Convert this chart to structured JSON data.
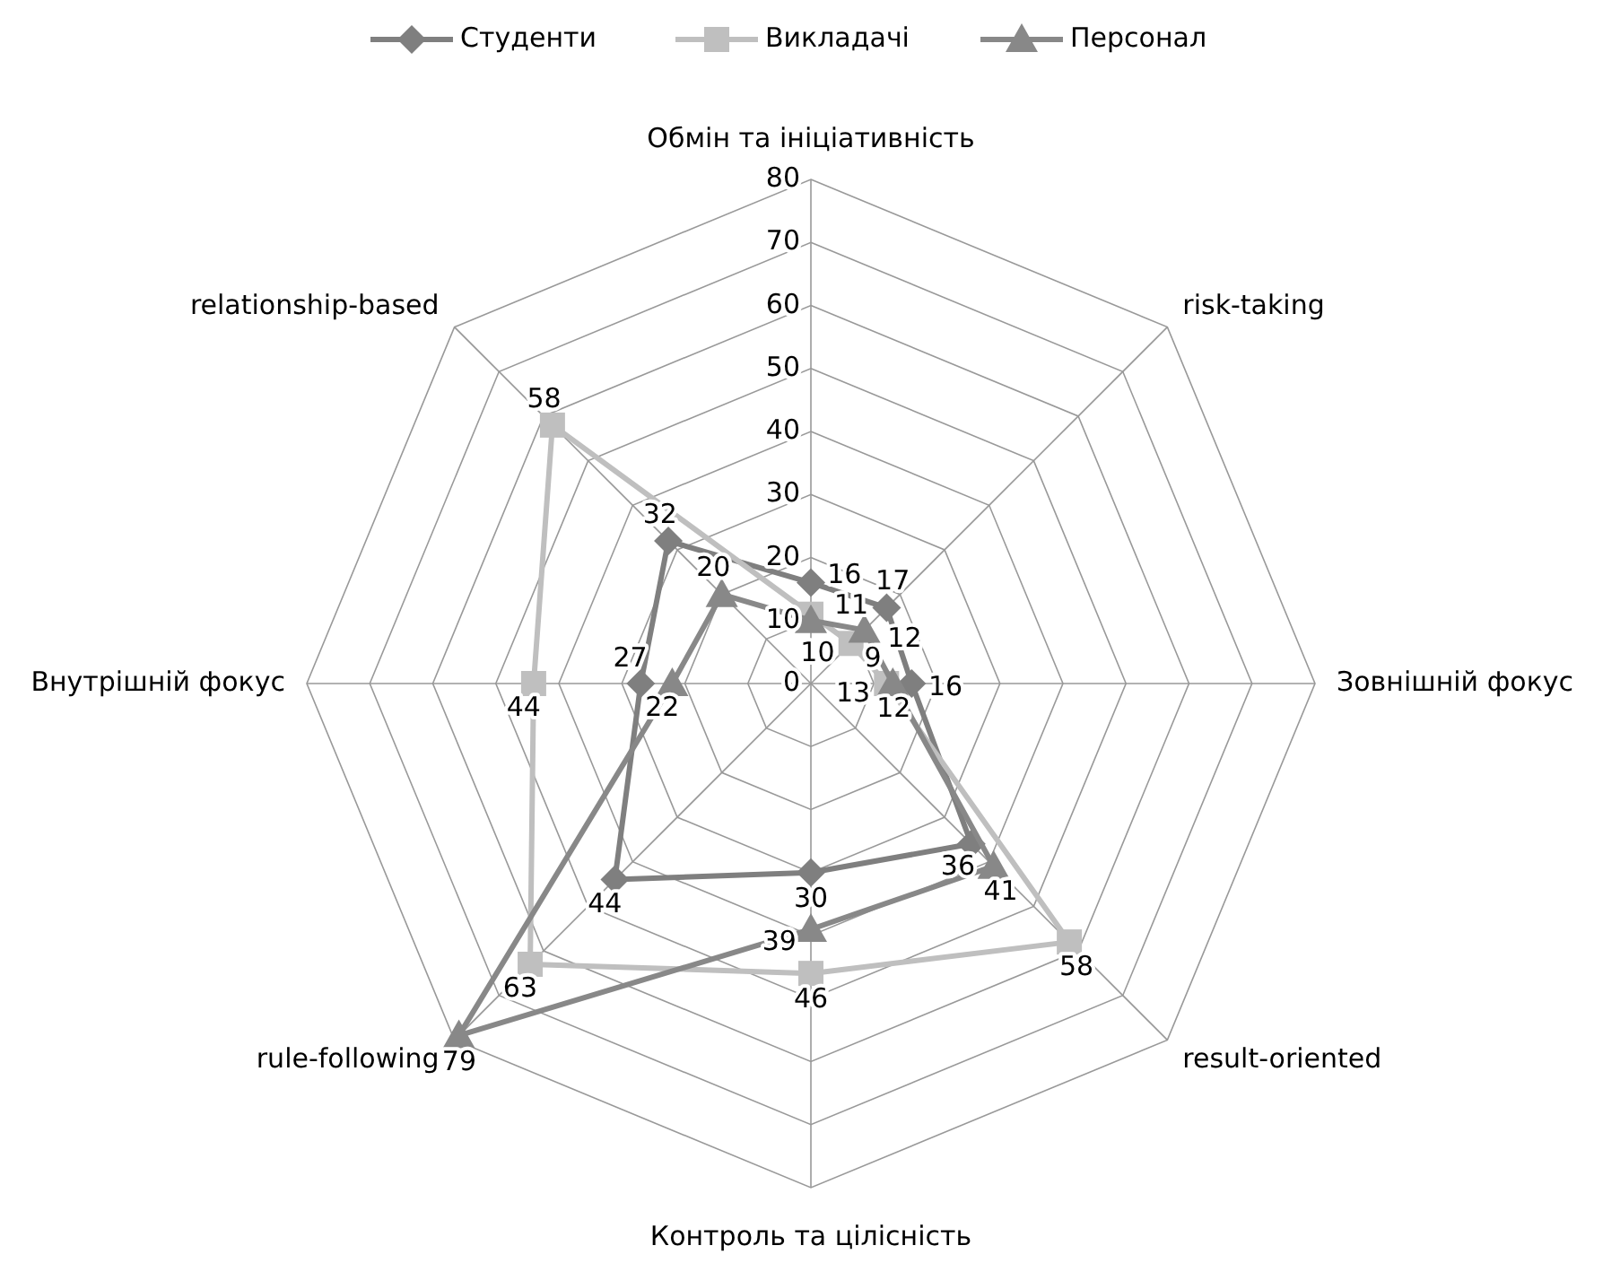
{
  "chart_data": {
    "type": "radar",
    "categories": [
      "Обмін та ініціативність",
      "risk-taking",
      "Зовнішній фокус",
      "result-oriented",
      "Контроль та цілісність",
      "rule-following",
      "Внутрішній фокус",
      "relationship-based"
    ],
    "series": [
      {
        "name": "Студенти",
        "color": "#7f7f7f",
        "marker": "diamond",
        "values": [
          16,
          17,
          16,
          36,
          30,
          44,
          27,
          32
        ]
      },
      {
        "name": "Викладачі",
        "color": "#bfbfbf",
        "marker": "square",
        "values": [
          11,
          9,
          12,
          58,
          46,
          63,
          44,
          58
        ]
      },
      {
        "name": "Персонал",
        "color": "#888888",
        "marker": "triangle",
        "values": [
          10,
          12,
          13,
          41,
          39,
          79,
          22,
          20
        ]
      }
    ],
    "ylim": [
      0,
      80
    ],
    "yticks": [
      0,
      10,
      20,
      30,
      40,
      50,
      60,
      70,
      80
    ],
    "grid": true,
    "legend": "top",
    "data_labels": true
  }
}
